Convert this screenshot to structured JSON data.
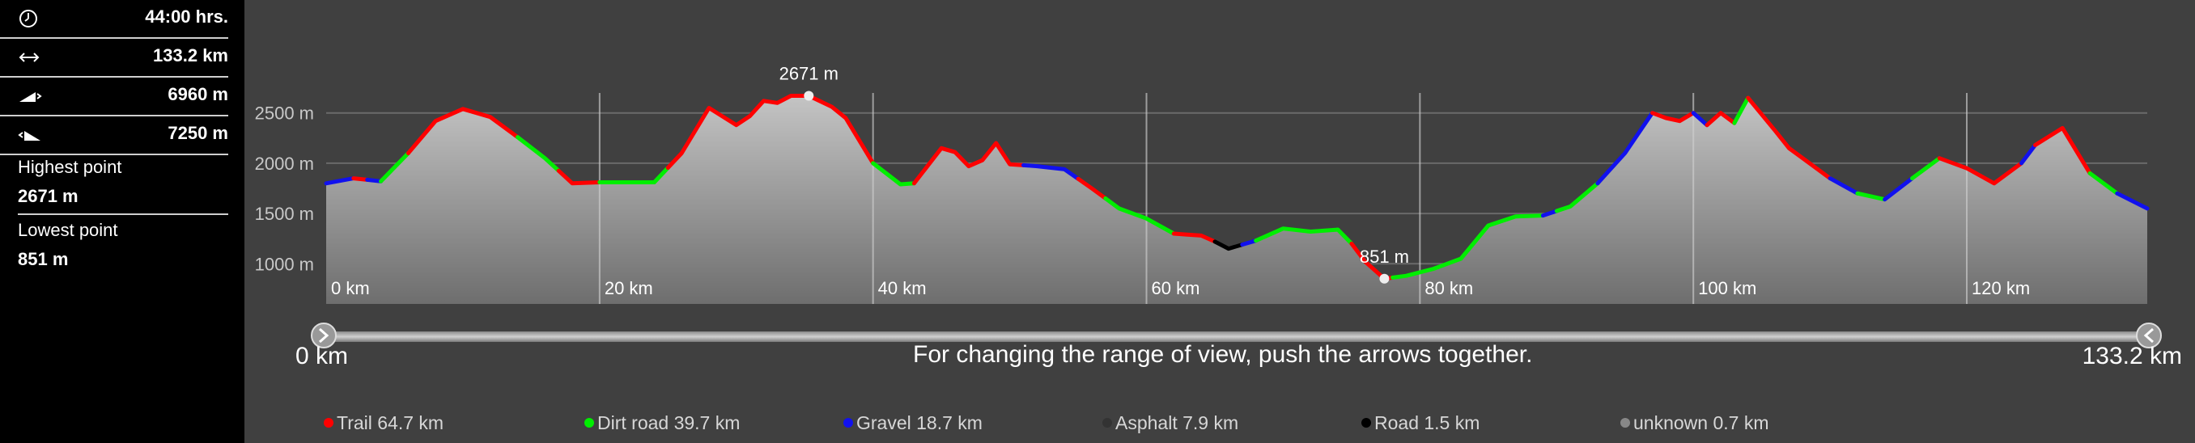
{
  "stats": {
    "duration": "44:00 hrs.",
    "distance": "133.2 km",
    "ascent": "6960 m",
    "descent": "7250 m",
    "highest_label": "Highest point",
    "highest_value": "2671 m",
    "lowest_label": "Lowest point",
    "lowest_value": "851 m"
  },
  "icons": {
    "duration": "clock-icon",
    "distance": "horizontal-arrows-icon",
    "ascent": "uphill-icon",
    "descent": "downhill-icon"
  },
  "range": {
    "start": "0 km",
    "end": "133.2 km",
    "hint": "For changing the range of view, push the arrows together."
  },
  "legend": [
    {
      "label": "Trail 64.7 km",
      "color": "#ff0000"
    },
    {
      "label": "Dirt road 39.7 km",
      "color": "#00ee00"
    },
    {
      "label": "Gravel 18.7 km",
      "color": "#1111ee"
    },
    {
      "label": "Asphalt 7.9 km",
      "color": "#333333"
    },
    {
      "label": "Road 1.5 km",
      "color": "#000000"
    },
    {
      "label": "unknown 0.7 km",
      "color": "#888888"
    }
  ],
  "chart_data": {
    "type": "area",
    "xlabel": "",
    "ylabel": "",
    "x_unit": "km",
    "y_unit": "m",
    "xlim": [
      0,
      133.2
    ],
    "ylim": [
      600,
      2900
    ],
    "x_ticks": [
      0,
      20,
      40,
      60,
      80,
      100,
      120
    ],
    "x_tick_labels": [
      "0 km",
      "20 km",
      "40 km",
      "60 km",
      "80 km",
      "100 km",
      "120 km"
    ],
    "y_ticks": [
      1000,
      1500,
      2000,
      2500
    ],
    "y_tick_labels": [
      "1000 m",
      "1500 m",
      "2000 m",
      "2500 m"
    ],
    "grid": true,
    "max_point": {
      "x": 35.3,
      "y": 2671,
      "label": "2671 m"
    },
    "min_point": {
      "x": 77.4,
      "y": 851,
      "label": "851 m"
    },
    "x": [
      0,
      2,
      4,
      6,
      8,
      10,
      12,
      14,
      16,
      18,
      20,
      22,
      24,
      26,
      28,
      30,
      31,
      32,
      33,
      34,
      35.3,
      37,
      38,
      40,
      42,
      43,
      45,
      46,
      47,
      48,
      49,
      50,
      52,
      54,
      56,
      58,
      60,
      62,
      63,
      64,
      65,
      66,
      68,
      70,
      72,
      74,
      75,
      76,
      77.4,
      79,
      81,
      83,
      85,
      87,
      89,
      91,
      93,
      95,
      97,
      98,
      99,
      100,
      101,
      102,
      103,
      104,
      106,
      107,
      108,
      110,
      112,
      114,
      116,
      118,
      120,
      122,
      124,
      125,
      127,
      129,
      131,
      133.2
    ],
    "y": [
      1800,
      1850,
      1820,
      2100,
      2420,
      2540,
      2460,
      2260,
      2050,
      1800,
      1810,
      1810,
      1810,
      2100,
      2550,
      2380,
      2470,
      2620,
      2600,
      2671,
      2671,
      2560,
      2450,
      2000,
      1790,
      1800,
      2150,
      2110,
      1970,
      2030,
      2200,
      1990,
      1970,
      1940,
      1750,
      1550,
      1450,
      1300,
      1290,
      1280,
      1220,
      1150,
      1230,
      1350,
      1320,
      1340,
      1200,
      1020,
      851,
      880,
      950,
      1050,
      1380,
      1470,
      1480,
      1570,
      1800,
      2100,
      2500,
      2450,
      2420,
      2500,
      2380,
      2500,
      2400,
      2650,
      2320,
      2150,
      2050,
      1850,
      1700,
      1640,
      1850,
      2050,
      1950,
      1800,
      2000,
      2180,
      2350,
      1900,
      1700,
      1550
    ],
    "surfaces": [
      {
        "name": "Gravel",
        "from": 0,
        "to": 2
      },
      {
        "name": "Trail",
        "from": 2,
        "to": 3
      },
      {
        "name": "Gravel",
        "from": 3,
        "to": 4
      },
      {
        "name": "Dirt road",
        "from": 4,
        "to": 6
      },
      {
        "name": "Trail",
        "from": 6,
        "to": 14
      },
      {
        "name": "Dirt road",
        "from": 14,
        "to": 17
      },
      {
        "name": "Trail",
        "from": 17,
        "to": 20
      },
      {
        "name": "Dirt road",
        "from": 20,
        "to": 25
      },
      {
        "name": "Trail",
        "from": 25,
        "to": 40
      },
      {
        "name": "Dirt road",
        "from": 40,
        "to": 43
      },
      {
        "name": "Trail",
        "from": 43,
        "to": 51
      },
      {
        "name": "Gravel",
        "from": 51,
        "to": 55
      },
      {
        "name": "Trail",
        "from": 55,
        "to": 57
      },
      {
        "name": "Dirt road",
        "from": 57,
        "to": 62
      },
      {
        "name": "Trail",
        "from": 62,
        "to": 65
      },
      {
        "name": "Road",
        "from": 65,
        "to": 67
      },
      {
        "name": "Gravel",
        "from": 67,
        "to": 68
      },
      {
        "name": "Dirt road",
        "from": 68,
        "to": 75
      },
      {
        "name": "Trail",
        "from": 75,
        "to": 78
      },
      {
        "name": "Dirt road",
        "from": 78,
        "to": 89
      },
      {
        "name": "Gravel",
        "from": 89,
        "to": 90
      },
      {
        "name": "Dirt road",
        "from": 90,
        "to": 93
      },
      {
        "name": "Gravel",
        "from": 93,
        "to": 97
      },
      {
        "name": "Trail",
        "from": 97,
        "to": 100
      },
      {
        "name": "Gravel",
        "from": 100,
        "to": 101
      },
      {
        "name": "Trail",
        "from": 101,
        "to": 103
      },
      {
        "name": "Dirt road",
        "from": 103,
        "to": 104
      },
      {
        "name": "Trail",
        "from": 104,
        "to": 110
      },
      {
        "name": "Gravel",
        "from": 110,
        "to": 112
      },
      {
        "name": "Dirt road",
        "from": 112,
        "to": 114
      },
      {
        "name": "Gravel",
        "from": 114,
        "to": 116
      },
      {
        "name": "Dirt road",
        "from": 116,
        "to": 118
      },
      {
        "name": "Trail",
        "from": 118,
        "to": 124
      },
      {
        "name": "Gravel",
        "from": 124,
        "to": 125
      },
      {
        "name": "Trail",
        "from": 125,
        "to": 129
      },
      {
        "name": "Dirt road",
        "from": 129,
        "to": 131
      },
      {
        "name": "Gravel",
        "from": 131,
        "to": 133.2
      }
    ]
  }
}
